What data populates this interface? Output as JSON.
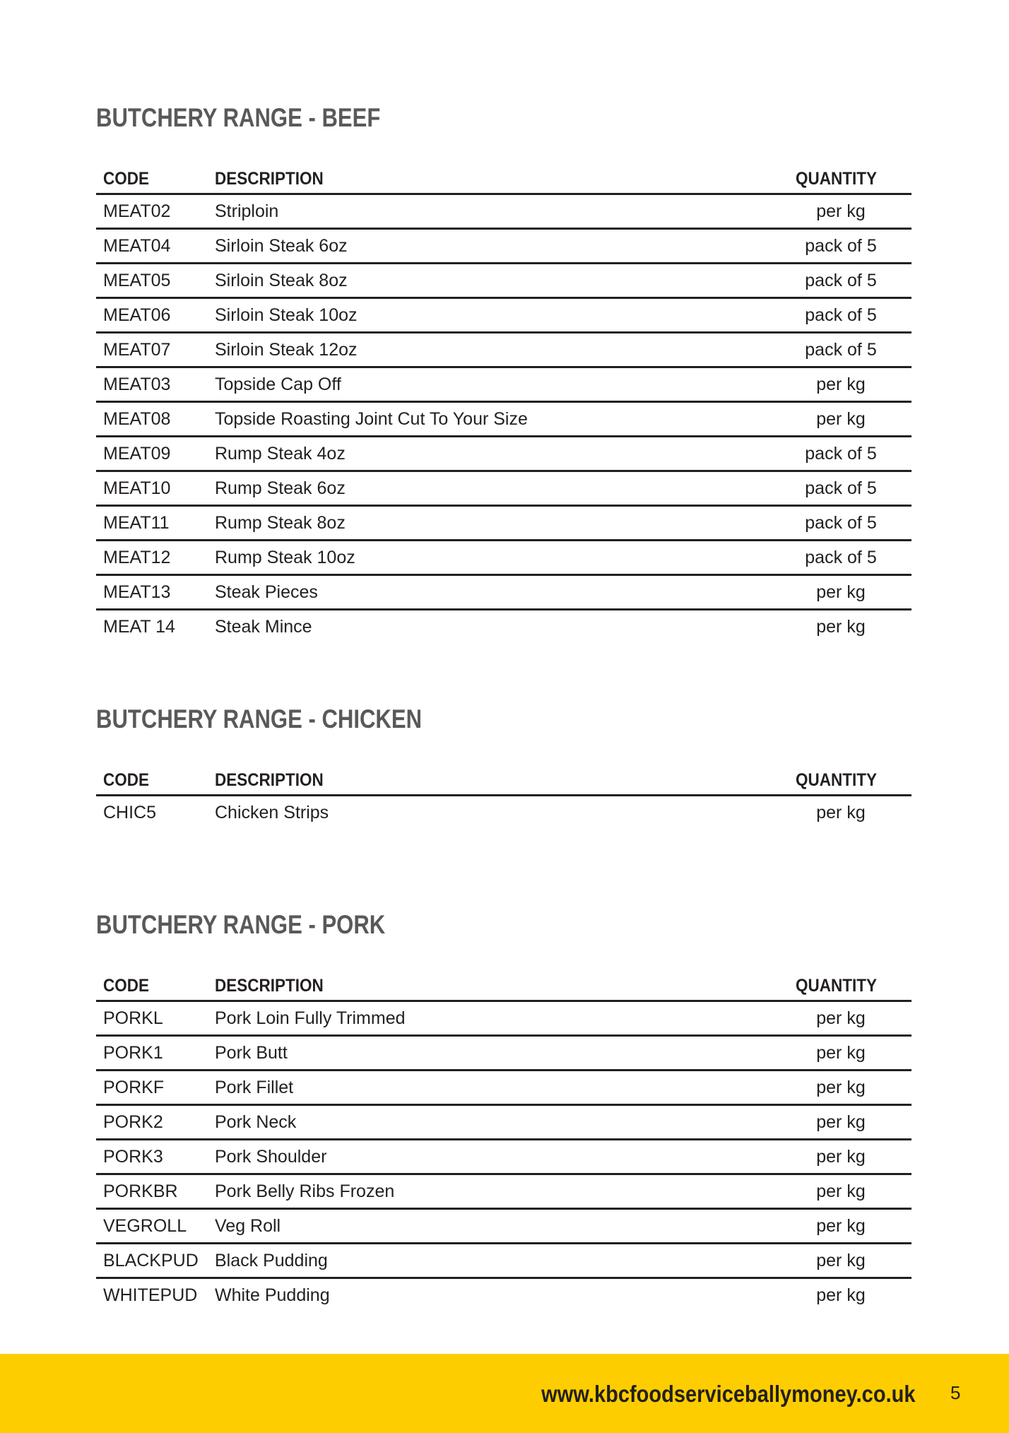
{
  "columns": {
    "code": "CODE",
    "description": "DESCRIPTION",
    "quantity": "QUANTITY"
  },
  "sections": [
    {
      "title": "BUTCHERY RANGE - BEEF",
      "rows": [
        {
          "code": "MEAT02",
          "description": "Striploin",
          "quantity": "per kg"
        },
        {
          "code": "MEAT04",
          "description": "Sirloin Steak 6oz",
          "quantity": "pack of 5"
        },
        {
          "code": "MEAT05",
          "description": "Sirloin Steak 8oz",
          "quantity": "pack of 5"
        },
        {
          "code": "MEAT06",
          "description": "Sirloin Steak 10oz",
          "quantity": "pack of 5"
        },
        {
          "code": "MEAT07",
          "description": "Sirloin Steak 12oz",
          "quantity": "pack of 5"
        },
        {
          "code": "MEAT03",
          "description": "Topside Cap Off",
          "quantity": "per kg"
        },
        {
          "code": "MEAT08",
          "description": "Topside Roasting Joint Cut To Your Size",
          "quantity": "per kg"
        },
        {
          "code": "MEAT09",
          "description": "Rump Steak 4oz",
          "quantity": "pack of 5"
        },
        {
          "code": "MEAT10",
          "description": "Rump Steak 6oz",
          "quantity": "pack of 5"
        },
        {
          "code": "MEAT11",
          "description": "Rump Steak 8oz",
          "quantity": "pack of 5"
        },
        {
          "code": "MEAT12",
          "description": "Rump Steak 10oz",
          "quantity": "pack of 5"
        },
        {
          "code": "MEAT13",
          "description": "Steak Pieces",
          "quantity": "per kg"
        },
        {
          "code": "MEAT 14",
          "description": "Steak Mince",
          "quantity": "per kg"
        }
      ]
    },
    {
      "title": "BUTCHERY RANGE - CHICKEN",
      "rows": [
        {
          "code": "CHIC5",
          "description": "Chicken Strips",
          "quantity": "per kg"
        }
      ]
    },
    {
      "title": "BUTCHERY RANGE - PORK",
      "rows": [
        {
          "code": "PORKL",
          "description": "Pork Loin Fully Trimmed",
          "quantity": "per kg"
        },
        {
          "code": "PORK1",
          "description": "Pork Butt",
          "quantity": "per kg"
        },
        {
          "code": "PORKF",
          "description": "Pork Fillet",
          "quantity": "per kg"
        },
        {
          "code": "PORK2",
          "description": "Pork Neck",
          "quantity": "per kg"
        },
        {
          "code": "PORK3",
          "description": "Pork Shoulder",
          "quantity": "per kg"
        },
        {
          "code": "PORKBR",
          "description": "Pork Belly Ribs Frozen",
          "quantity": "per kg"
        },
        {
          "code": "VEGROLL",
          "description": "Veg Roll",
          "quantity": "per kg"
        },
        {
          "code": "BLACKPUD",
          "description": "Black Pudding",
          "quantity": "per kg"
        },
        {
          "code": "WHITEPUD",
          "description": "White Pudding",
          "quantity": "per kg"
        }
      ]
    }
  ],
  "footer": {
    "url": "www.kbcfoodserviceballymoney.co.uk",
    "page_number": "5",
    "bar_color": "#fecd00"
  }
}
